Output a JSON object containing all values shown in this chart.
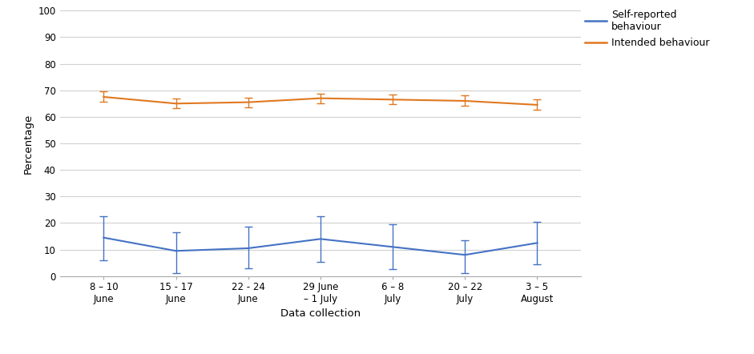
{
  "x_labels": [
    "8 – 10\nJune",
    "15 - 17\nJune",
    "22 - 24\nJune",
    "29 June\n– 1 July",
    "6 – 8\nJuly",
    "20 – 22\nJuly",
    "3 – 5\nAugust"
  ],
  "intended_y": [
    67.5,
    65.0,
    65.5,
    67.0,
    66.5,
    66.0,
    64.5
  ],
  "intended_yerr_upper": [
    2.0,
    1.8,
    1.8,
    1.8,
    1.8,
    2.0,
    2.0
  ],
  "intended_yerr_lower": [
    1.8,
    1.8,
    1.8,
    1.8,
    1.8,
    1.8,
    1.8
  ],
  "selfreport_y": [
    14.5,
    9.5,
    10.5,
    14.0,
    11.0,
    8.0,
    12.5
  ],
  "selfreport_yerr_upper": [
    8.0,
    7.0,
    8.0,
    8.5,
    8.5,
    5.5,
    8.0
  ],
  "selfreport_yerr_lower": [
    8.5,
    8.5,
    7.5,
    8.5,
    8.5,
    7.0,
    8.0
  ],
  "intended_color": "#E07820",
  "selfreport_color": "#4472C4",
  "ylabel": "Percentage",
  "xlabel": "Data collection",
  "yticks": [
    0,
    10,
    20,
    30,
    40,
    50,
    60,
    70,
    80,
    90,
    100
  ],
  "legend_label_self": "Self-reported\nbehaviour",
  "legend_label_intended": "Intended behaviour",
  "background_color": "#FFFFFF",
  "grid_color": "#D0D0D0"
}
